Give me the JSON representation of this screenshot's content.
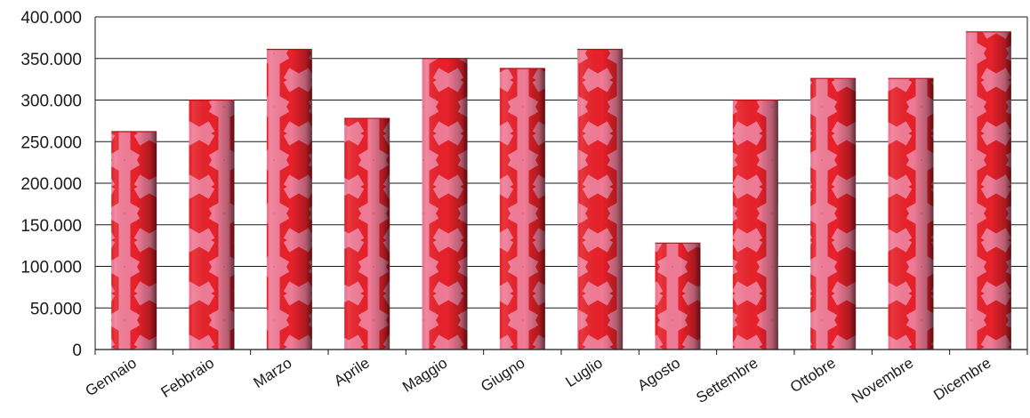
{
  "chart_data": {
    "type": "bar",
    "title": "",
    "xlabel": "",
    "ylabel": "",
    "categories": [
      "Gennaio",
      "Febbraio",
      "Marzo",
      "Aprile",
      "Maggio",
      "Giugno",
      "Luglio",
      "Agosto",
      "Settembre",
      "Ottobre",
      "Novembre",
      "Dicembre"
    ],
    "values": [
      262000,
      300000,
      361000,
      278000,
      350000,
      338000,
      361000,
      128000,
      300000,
      326000,
      326000,
      382000
    ],
    "ylim": [
      0,
      400000
    ],
    "yticks": [
      0,
      50000,
      100000,
      150000,
      200000,
      250000,
      300000,
      350000,
      400000
    ],
    "ytick_labels": [
      "0",
      "50.000",
      "100.000",
      "150.000",
      "200.000",
      "250.000",
      "300.000",
      "350.000",
      "400.000"
    ],
    "grid": true,
    "legend": "none",
    "bar_color": "#e8212a",
    "bar_pattern": "hexagon",
    "pattern_line_color": "#f07a95",
    "gridline_color": "#1a1a1a"
  }
}
